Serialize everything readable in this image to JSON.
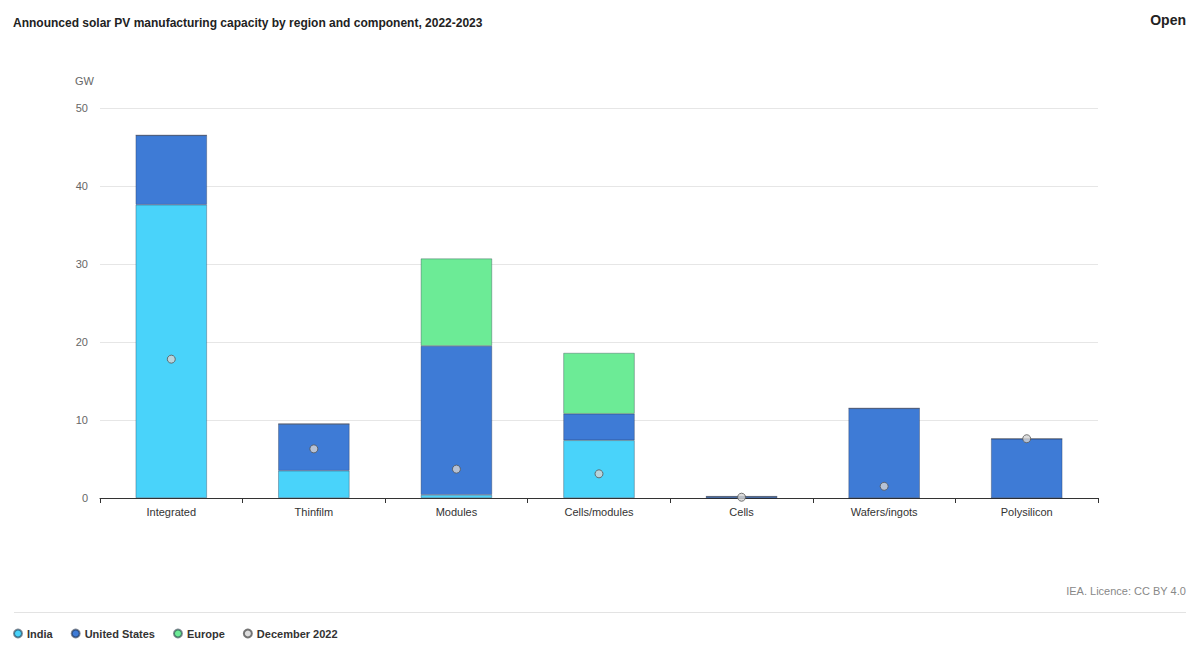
{
  "chart_data": {
    "type": "bar",
    "title": "Announced solar PV manufacturing capacity by region and component, 2022-2023",
    "y_label": "GW",
    "source": "IEA. Licence: CC BY 4.0",
    "button": "Open",
    "categories": [
      "Integrated",
      "Thinfilm",
      "Modules",
      "Cells/modules",
      "Cells",
      "Wafers/ingots",
      "Polysilicon"
    ],
    "series": [
      {
        "name": "India",
        "color": "#49d3fa",
        "values": [
          37.6,
          3.5,
          0.4,
          7.4,
          0,
          0,
          0
        ]
      },
      {
        "name": "United States",
        "color": "#3e7bd6",
        "values": [
          8.9,
          6.0,
          19.1,
          3.4,
          0.2,
          11.5,
          7.6
        ]
      },
      {
        "name": "Europe",
        "color": "#6ceb96",
        "values": [
          0,
          0,
          11.2,
          7.8,
          0,
          0,
          0
        ]
      },
      {
        "name": "December 2022",
        "color": "#d4d4d4",
        "type": "scatter",
        "marker": "circle",
        "values": [
          17.8,
          6.3,
          3.7,
          3.1,
          0.1,
          1.5,
          7.6
        ]
      }
    ],
    "stacked": true,
    "ylim": [
      0,
      50
    ],
    "yticks": [
      0,
      10,
      20,
      30,
      40,
      50
    ],
    "grid": true,
    "legend": "bottom-left"
  }
}
